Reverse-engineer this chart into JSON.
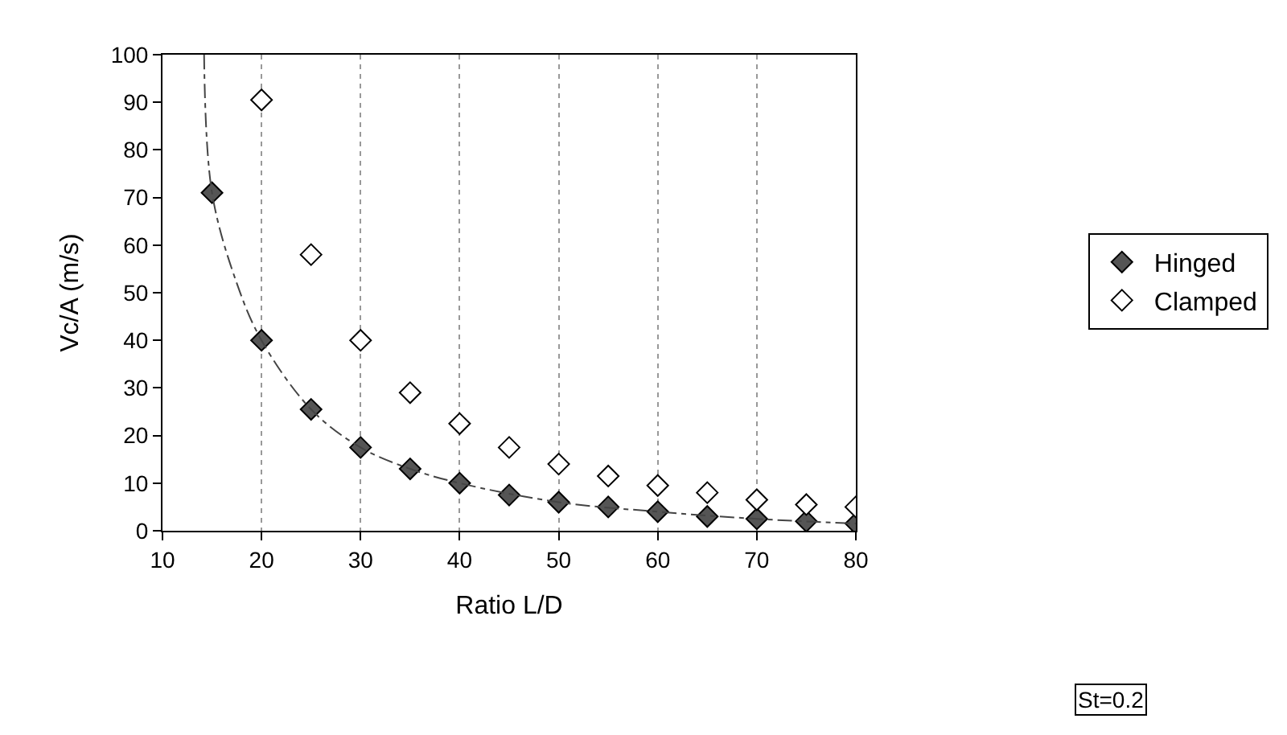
{
  "chart_data": {
    "type": "scatter",
    "xlabel": "Ratio L/D",
    "ylabel": "Vc/A (m/s)",
    "xlim": [
      10,
      80
    ],
    "xticks": [
      10,
      20,
      30,
      40,
      50,
      60,
      70,
      80
    ],
    "ylim": [
      0,
      100
    ],
    "yticks": [
      0,
      10,
      20,
      30,
      40,
      50,
      60,
      70,
      80,
      90,
      100
    ],
    "grid": "x",
    "legend": "right",
    "marker": "diamond",
    "series": [
      {
        "name": "Hinged",
        "color": "#555555",
        "x": [
          15,
          20,
          25,
          30,
          35,
          40,
          45,
          50,
          55,
          60,
          65,
          70,
          75,
          80
        ],
        "values": [
          71,
          40,
          25.5,
          17.5,
          13,
          10,
          7.5,
          6,
          5,
          4,
          3,
          2.5,
          2,
          1.5
        ]
      },
      {
        "name": "Clamped",
        "color": "#ffffff",
        "x": [
          20,
          25,
          30,
          35,
          40,
          45,
          50,
          55,
          60,
          65,
          70,
          75,
          80
        ],
        "values": [
          90.5,
          58,
          40,
          29,
          22.5,
          17.5,
          14,
          11.5,
          9.5,
          8,
          6.5,
          5.5,
          5
        ]
      },
      {
        "type": "line",
        "color": "#444444",
        "line_style": "dashed",
        "marker": "none",
        "x": [
          14.2,
          15,
          17.5,
          20,
          25,
          30,
          35,
          40,
          50,
          60,
          70,
          80
        ],
        "values": [
          100,
          71,
          52,
          40,
          25.5,
          17.5,
          13,
          10,
          6,
          4,
          2.5,
          1.5
        ]
      }
    ],
    "annotations": [
      "St=0.2"
    ]
  }
}
